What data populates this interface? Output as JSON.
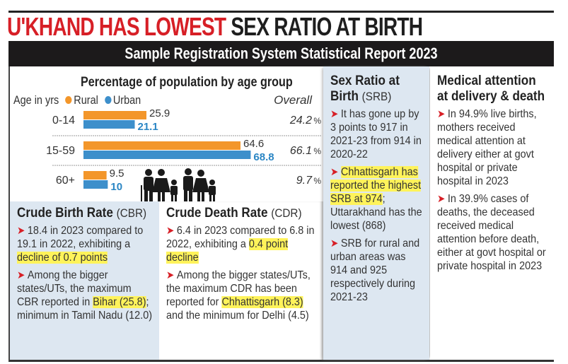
{
  "headline": {
    "red_part": "U'KHAND HAS LOWEST",
    "dark_part": "SEX RATIO AT BIRTH"
  },
  "subheader": "Sample Registration System Statistical Report 2023",
  "colors": {
    "rural": "#f3962a",
    "urban": "#3d8fcb",
    "urban_label": "#2b86c4",
    "accent_red": "#d71f26",
    "highlight": "#fff35a",
    "panel_blue": "#dde7f1"
  },
  "chart_data": {
    "type": "bar",
    "orientation": "horizontal",
    "title": "Percentage of population by age group",
    "category_axis_label": "Age in yrs",
    "categories": [
      "0-14",
      "15-59",
      "60+"
    ],
    "series": [
      {
        "name": "Rural",
        "values": [
          25.9,
          64.6,
          9.5
        ],
        "labels": [
          "25.9",
          "64.6",
          "9.5"
        ]
      },
      {
        "name": "Urban",
        "values": [
          21.1,
          68.8,
          10
        ],
        "labels": [
          "21.1",
          "68.8",
          "10"
        ]
      }
    ],
    "overall_label": "Overall",
    "overall": [
      "24.2",
      "66.1",
      "9.7"
    ],
    "overall_unit": "%",
    "xlim": [
      0,
      80
    ],
    "legend": "top-left",
    "grid": false
  },
  "icons": {
    "people": "family-people-icon",
    "bullet": "arrow-bullet-icon"
  },
  "cbr": {
    "title": "Crude Birth Rate",
    "abbr": "(CBR)",
    "p1_a": "18.4 in 2023 compared to 19.1 in 2022, exhibiting a ",
    "p1_hl": "decline of 0.7 points",
    "p2_a": "Among the bigger states/UTs, the maximum CBR reported in ",
    "p2_hl": "Bihar (25.8)",
    "p2_b": "; minimum in Tamil Nadu (12.0)"
  },
  "cdr": {
    "title": "Crude Death Rate",
    "abbr": "(CDR)",
    "p1_a": "6.4 in 2023 compared to 6.8 in 2022, exhibiting a ",
    "p1_hl": "0.4 point decline",
    "p2_a": "Among the bigger states/UTs, the maximum CDR has been reported for ",
    "p2_hl": "Chhattisgarh (8.3)",
    "p2_b": " and the minimum for Delhi (4.5)"
  },
  "srb": {
    "title": "Sex Ratio at Birth",
    "abbr": "(SRB)",
    "p1": "It has gone up by 3 points to 917 in 2021-23 from 914 in 2020-22",
    "p2_hl": "Chhattisgarh has reported the highest SRB at 974",
    "p2_b": "; Uttarakhand has the lowest (868)",
    "p3": "SRB for rural and urban areas was 914 and 925 respectively during 2021-23"
  },
  "medical": {
    "title": "Medical attention at delivery & death",
    "p1": "In 94.9% live births, mothers received medical attention at delivery either at govt hospital or private hospital in 2023",
    "p2": "In 39.9% cases of deaths, the deceased received medical attention before death, either at govt hospital or private hospital in 2023"
  }
}
